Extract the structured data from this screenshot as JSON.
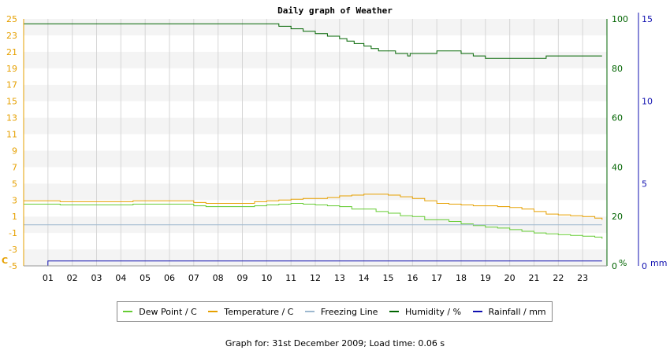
{
  "chart_data": {
    "type": "line",
    "title": "Daily graph of Weather",
    "x_ticks": [
      "01",
      "02",
      "03",
      "04",
      "05",
      "06",
      "07",
      "08",
      "09",
      "10",
      "11",
      "12",
      "13",
      "14",
      "15",
      "16",
      "17",
      "18",
      "19",
      "20",
      "21",
      "22",
      "23"
    ],
    "x_range": [
      0,
      24
    ],
    "grid": true,
    "legend_position": "bottom",
    "axes": {
      "temperature": {
        "unit_label": "C",
        "range": [
          -5,
          25
        ],
        "ticks": [
          -5,
          -3,
          -1,
          1,
          3,
          5,
          7,
          9,
          11,
          13,
          15,
          17,
          19,
          21,
          23,
          25
        ],
        "color": "#e6a000"
      },
      "humidity": {
        "unit_label": "%",
        "range": [
          0,
          100
        ],
        "ticks": [
          0,
          20,
          40,
          60,
          80,
          100
        ],
        "color": "#006400"
      },
      "rainfall": {
        "unit_label": "mm",
        "range": [
          0,
          15
        ],
        "ticks": [
          0,
          5,
          10,
          15
        ],
        "color": "#1010b0"
      }
    },
    "series": [
      {
        "name": "Dew Point / C",
        "axis": "temperature",
        "color": "#66cc33",
        "x": [
          0,
          1,
          1.5,
          3,
          4,
          4.5,
          5.5,
          6.5,
          7,
          7.5,
          8,
          9,
          9.5,
          10,
          10.5,
          11,
          11.5,
          12,
          12.5,
          13,
          13.5,
          14,
          14.5,
          15,
          15.5,
          16,
          16.5,
          17,
          17.5,
          18,
          18.5,
          19,
          19.5,
          20,
          20.5,
          21,
          21.5,
          22,
          22.5,
          23,
          23.5,
          23.8
        ],
        "y": [
          2.5,
          2.5,
          2.4,
          2.4,
          2.4,
          2.5,
          2.5,
          2.5,
          2.3,
          2.2,
          2.2,
          2.2,
          2.3,
          2.4,
          2.5,
          2.6,
          2.5,
          2.4,
          2.3,
          2.2,
          1.9,
          1.9,
          1.6,
          1.4,
          1.1,
          1.0,
          0.6,
          0.6,
          0.4,
          0.1,
          -0.1,
          -0.3,
          -0.4,
          -0.6,
          -0.8,
          -1.0,
          -1.1,
          -1.2,
          -1.3,
          -1.4,
          -1.5,
          -1.7
        ]
      },
      {
        "name": "Temperature / C",
        "axis": "temperature",
        "color": "#e6a000",
        "x": [
          0,
          1,
          1.5,
          3,
          4,
          4.5,
          5.5,
          6.5,
          7,
          7.5,
          8,
          9,
          9.5,
          10,
          10.5,
          11,
          11.5,
          12,
          12.5,
          13,
          13.5,
          14,
          14.5,
          15,
          15.5,
          16,
          16.5,
          17,
          17.5,
          18,
          18.5,
          19,
          19.5,
          20,
          20.5,
          21,
          21.5,
          22,
          22.5,
          23,
          23.5,
          23.8
        ],
        "y": [
          2.9,
          2.9,
          2.8,
          2.8,
          2.8,
          2.9,
          2.9,
          2.9,
          2.7,
          2.6,
          2.6,
          2.6,
          2.8,
          2.9,
          3.0,
          3.1,
          3.2,
          3.2,
          3.3,
          3.5,
          3.6,
          3.7,
          3.7,
          3.6,
          3.4,
          3.2,
          2.9,
          2.6,
          2.5,
          2.4,
          2.3,
          2.3,
          2.2,
          2.1,
          1.9,
          1.6,
          1.3,
          1.2,
          1.1,
          1.0,
          0.8,
          0.6
        ]
      },
      {
        "name": "Freezing Line",
        "axis": "temperature",
        "color": "#9db8cf",
        "x": [
          0,
          23.8
        ],
        "y": [
          0,
          0
        ]
      },
      {
        "name": "Humidity / %",
        "axis": "humidity",
        "color": "#006400",
        "x": [
          0,
          3,
          6,
          9,
          10,
          10.5,
          11,
          11.5,
          12,
          12.5,
          13,
          13.3,
          13.6,
          14,
          14.3,
          14.6,
          15,
          15.3,
          15.6,
          15.8,
          15.9,
          16,
          16.5,
          17,
          17.5,
          18,
          18.5,
          19,
          19.5,
          20,
          20.5,
          21,
          21.5,
          22,
          22.5,
          23,
          23.8
        ],
        "y": [
          98,
          98,
          98,
          98,
          98,
          97,
          96,
          95,
          94,
          93,
          92,
          91,
          90,
          89,
          88,
          87,
          87,
          86,
          86,
          85,
          86,
          86,
          86,
          87,
          87,
          86,
          85,
          84,
          84,
          84,
          84,
          84,
          85,
          85,
          85,
          85,
          85
        ]
      },
      {
        "name": "Rainfall / mm",
        "axis": "rainfall",
        "color": "#1010b0",
        "x": [
          0,
          1,
          1,
          23.8
        ],
        "y": [
          0,
          0,
          0.3,
          0.3
        ]
      }
    ]
  },
  "legend": [
    {
      "label": "Dew Point / C",
      "color": "#66cc33"
    },
    {
      "label": "Temperature / C",
      "color": "#e6a000"
    },
    {
      "label": "Freezing Line",
      "color": "#9db8cf"
    },
    {
      "label": "Humidity / %",
      "color": "#006400"
    },
    {
      "label": "Rainfall / mm",
      "color": "#1010b0"
    }
  ],
  "footer": "Graph for: 31st December 2009; Load time: 0.06 s"
}
